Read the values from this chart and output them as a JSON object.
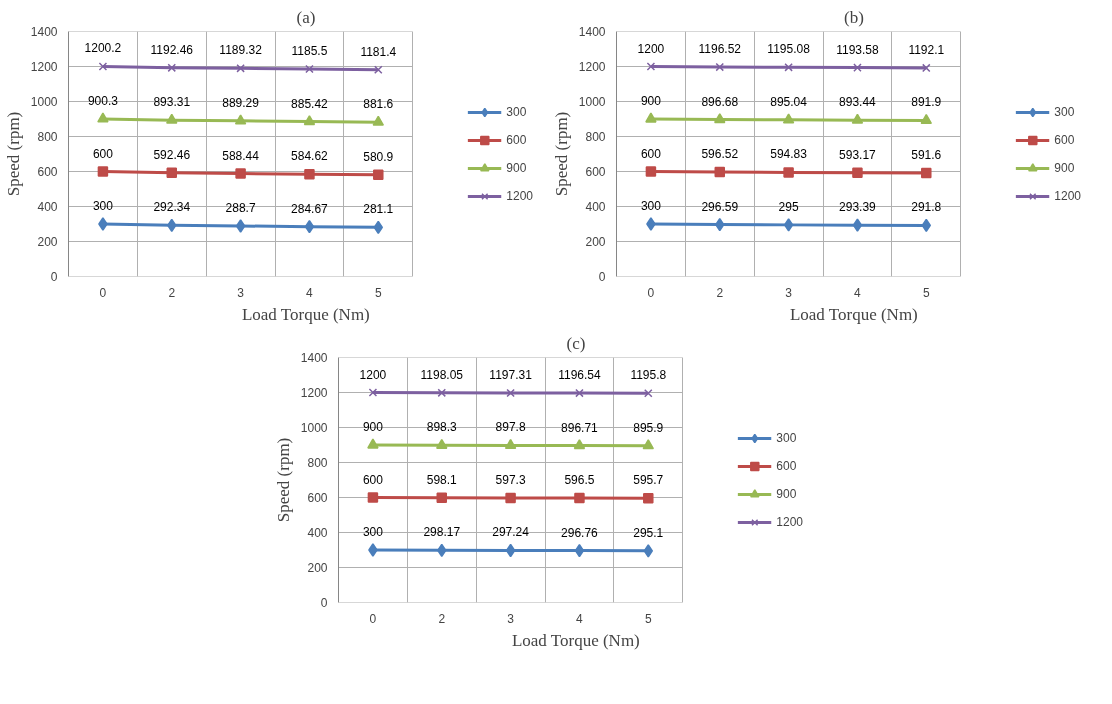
{
  "chart_data": [
    {
      "type": "line",
      "title": "(a)",
      "xlabel": "Load Torque (Nm)",
      "ylabel": "Speed (rpm)",
      "categories": [
        "0",
        "2",
        "3",
        "4",
        "5"
      ],
      "ylim": [
        0,
        1400
      ],
      "yticks": [
        0,
        200,
        400,
        600,
        800,
        1000,
        1200,
        1400
      ],
      "grid": true,
      "legend": "right",
      "data_labels": true,
      "series": [
        {
          "name": "300",
          "color": "#4a7ebb",
          "marker": "diamond",
          "values": [
            300,
            292.34,
            288.7,
            284.67,
            281.1
          ]
        },
        {
          "name": "600",
          "color": "#be4b48",
          "marker": "square",
          "values": [
            600,
            592.46,
            588.44,
            584.62,
            580.9
          ]
        },
        {
          "name": "900",
          "color": "#98b954",
          "marker": "triangle",
          "values": [
            900.3,
            893.31,
            889.29,
            885.42,
            881.6
          ]
        },
        {
          "name": "1200",
          "color": "#7d60a0",
          "marker": "cross",
          "values": [
            1200.2,
            1192.46,
            1189.32,
            1185.5,
            1181.4
          ]
        }
      ]
    },
    {
      "type": "line",
      "title": "(b)",
      "xlabel": "Load Torque (Nm)",
      "ylabel": "Speed (rpm)",
      "categories": [
        "0",
        "2",
        "3",
        "4",
        "5"
      ],
      "ylim": [
        0,
        1400
      ],
      "yticks": [
        0,
        200,
        400,
        600,
        800,
        1000,
        1200,
        1400
      ],
      "grid": true,
      "legend": "right",
      "data_labels": true,
      "series": [
        {
          "name": "300",
          "color": "#4a7ebb",
          "marker": "diamond",
          "values": [
            300,
            296.59,
            295,
            293.39,
            291.8
          ]
        },
        {
          "name": "600",
          "color": "#be4b48",
          "marker": "square",
          "values": [
            600,
            596.52,
            594.83,
            593.17,
            591.6
          ]
        },
        {
          "name": "900",
          "color": "#98b954",
          "marker": "triangle",
          "values": [
            900,
            896.68,
            895.04,
            893.44,
            891.9
          ]
        },
        {
          "name": "1200",
          "color": "#7d60a0",
          "marker": "cross",
          "values": [
            1200,
            1196.52,
            1195.08,
            1193.58,
            1192.1
          ]
        }
      ]
    },
    {
      "type": "line",
      "title": "(c)",
      "xlabel": "Load Torque (Nm)",
      "ylabel": "Speed (rpm)",
      "categories": [
        "0",
        "2",
        "3",
        "4",
        "5"
      ],
      "ylim": [
        0,
        1400
      ],
      "yticks": [
        0,
        200,
        400,
        600,
        800,
        1000,
        1200,
        1400
      ],
      "grid": true,
      "legend": "right",
      "data_labels": true,
      "series": [
        {
          "name": "300",
          "color": "#4a7ebb",
          "marker": "diamond",
          "values": [
            300,
            298.17,
            297.24,
            296.76,
            295.1
          ]
        },
        {
          "name": "600",
          "color": "#be4b48",
          "marker": "square",
          "values": [
            600,
            598.1,
            597.3,
            596.5,
            595.7
          ]
        },
        {
          "name": "900",
          "color": "#98b954",
          "marker": "triangle",
          "values": [
            900,
            898.3,
            897.8,
            896.71,
            895.9
          ]
        },
        {
          "name": "1200",
          "color": "#7d60a0",
          "marker": "cross",
          "values": [
            1200,
            1198.05,
            1197.31,
            1196.54,
            1195.8
          ]
        }
      ]
    }
  ]
}
